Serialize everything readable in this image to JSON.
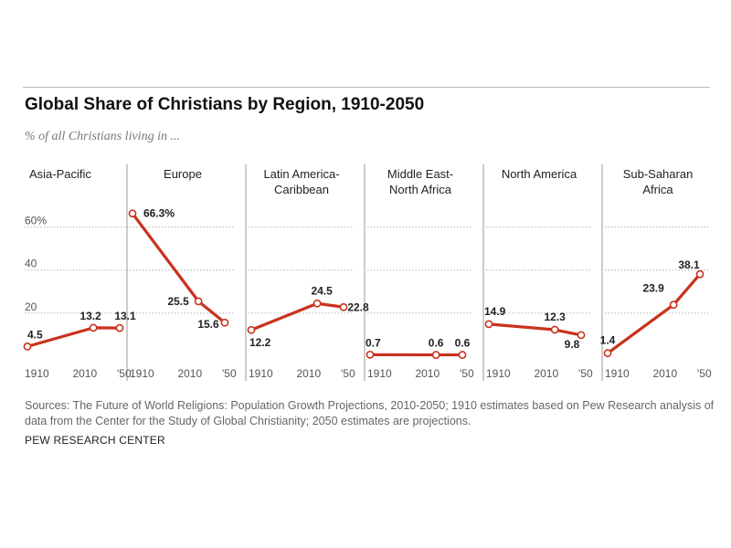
{
  "header": {
    "title": "Global Share of Christians by Region, 1910-2050",
    "subtitle": "% of all Christians living in ..."
  },
  "footer": {
    "source": "Sources: The Future of World Religions: Population Growth Projections, 2010-2050; 1910 estimates based on Pew Research analysis of data from the Center for the Study of Global Christianity; 2050 estimates are projections.",
    "credit": "PEW RESEARCH CENTER"
  },
  "colors": {
    "line": "#c8321e",
    "marker_fill": "#ffffff",
    "grid": "#b5b5b5",
    "divider": "#999999"
  },
  "chart_data": {
    "type": "line",
    "ylim": [
      0,
      70
    ],
    "y_ticks": [
      {
        "value": 60,
        "label": "60%"
      },
      {
        "value": 40,
        "label": "40"
      },
      {
        "value": 20,
        "label": "20"
      }
    ],
    "grid": true,
    "x": [
      1910,
      2010,
      2050
    ],
    "x_tick_labels": [
      "1910",
      "2010",
      "'50"
    ],
    "panels": [
      {
        "region": [
          "Asia-Pacific"
        ],
        "values": [
          4.5,
          13.2,
          13.1
        ],
        "labels": [
          "4.5",
          "13.2",
          "13.1"
        ]
      },
      {
        "region": [
          "Europe"
        ],
        "values": [
          66.3,
          25.5,
          15.6
        ],
        "labels": [
          "66.3%",
          "25.5",
          "15.6"
        ]
      },
      {
        "region": [
          "Latin America-",
          "Caribbean"
        ],
        "values": [
          12.2,
          24.5,
          22.8
        ],
        "labels": [
          "12.2",
          "24.5",
          "22.8"
        ]
      },
      {
        "region": [
          "Middle East-",
          "North Africa"
        ],
        "values": [
          0.7,
          0.6,
          0.6
        ],
        "labels": [
          "0.7",
          "0.6",
          "0.6"
        ]
      },
      {
        "region": [
          "North America"
        ],
        "values": [
          14.9,
          12.3,
          9.8
        ],
        "labels": [
          "14.9",
          "12.3",
          "9.8"
        ]
      },
      {
        "region": [
          "Sub-Saharan",
          "Africa"
        ],
        "values": [
          1.4,
          23.9,
          38.1
        ],
        "labels": [
          "1.4",
          "23.9",
          "38.1"
        ]
      }
    ]
  }
}
